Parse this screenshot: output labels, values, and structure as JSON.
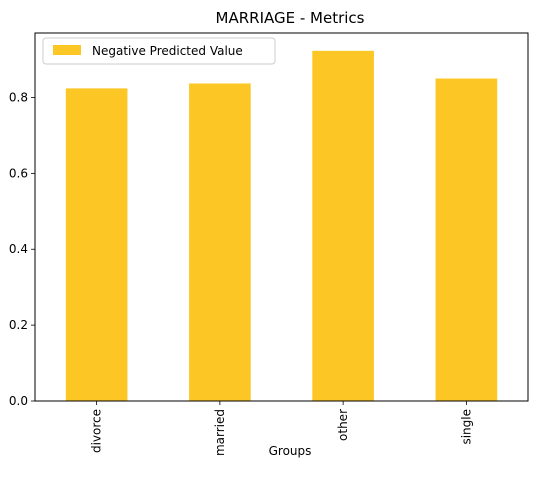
{
  "chart_data": {
    "type": "bar",
    "title": "MARRIAGE - Metrics",
    "xlabel": "Groups",
    "ylabel": "",
    "categories": [
      "divorce",
      "married",
      "other",
      "single"
    ],
    "series": [
      {
        "name": "Negative Predicted Value",
        "values": [
          0.824,
          0.837,
          0.923,
          0.85
        ],
        "color": "#fcc624"
      }
    ],
    "ylim": [
      0,
      0.97
    ],
    "yticks": [
      0.0,
      0.2,
      0.4,
      0.6,
      0.8
    ],
    "ytick_labels": [
      "0.0",
      "0.2",
      "0.4",
      "0.6",
      "0.8"
    ],
    "legend_position": "top-left",
    "grid": false
  }
}
